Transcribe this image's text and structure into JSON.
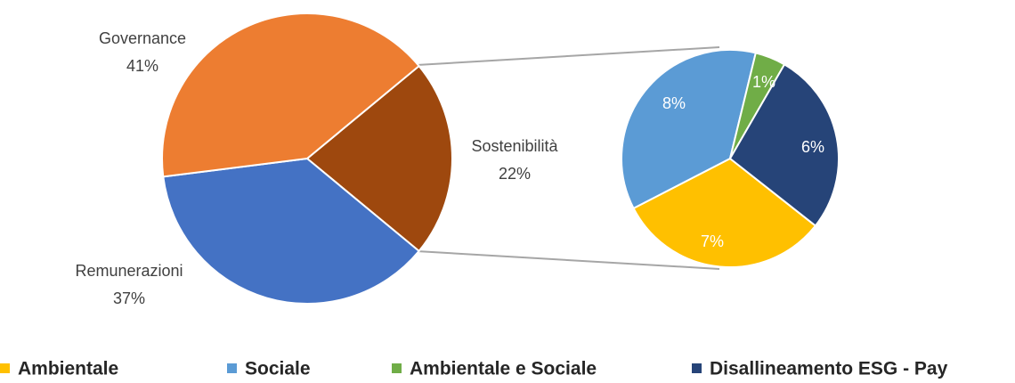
{
  "chart_data": {
    "type": "pie-of-pie",
    "categories": [
      "Sostenibilità",
      "Remunerazioni",
      "Governance"
    ],
    "values": [
      22,
      37,
      41
    ],
    "value_labels": [
      "22%",
      "37%",
      "41%"
    ],
    "colors": [
      "#9e480e",
      "#4472c4",
      "#ed7d31"
    ],
    "secondary": {
      "categories": [
        "Ambientale",
        "Sociale",
        "Ambientale e Sociale",
        "Disallineamento ESG - Pay"
      ],
      "values": [
        7,
        8,
        1,
        6
      ],
      "value_labels": [
        "7%",
        "8%",
        "1%",
        "6%"
      ],
      "colors": [
        "#ffc000",
        "#5b9bd5",
        "#70ad47",
        "#264478"
      ]
    },
    "legend": "bottom"
  }
}
